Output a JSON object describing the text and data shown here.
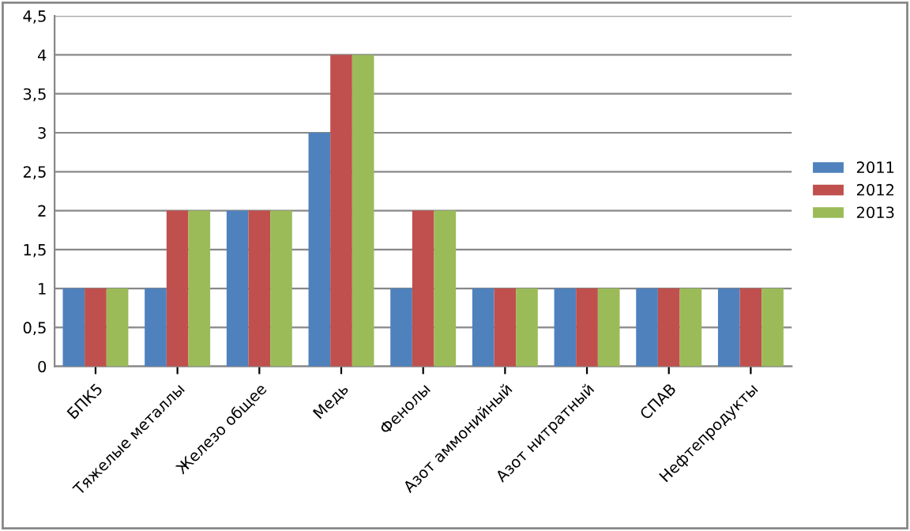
{
  "chart_data": {
    "type": "bar",
    "categories": [
      "БПК5",
      "Тяжелые металлы",
      "Железо общее",
      "Медь",
      "Фенолы",
      "Азот аммонийный",
      "Азот нитратный",
      "СПАВ",
      "Нефтепродукты"
    ],
    "series": [
      {
        "name": "2011",
        "color": "#4f81bd",
        "values": [
          1,
          1,
          2,
          3,
          1,
          1,
          1,
          1,
          1
        ]
      },
      {
        "name": "2012",
        "color": "#c0504d",
        "values": [
          1,
          2,
          2,
          4,
          2,
          1,
          1,
          1,
          1
        ]
      },
      {
        "name": "2013",
        "color": "#9bbb59",
        "values": [
          1,
          2,
          2,
          4,
          2,
          1,
          1,
          1,
          1
        ]
      }
    ],
    "ylim": [
      0,
      4.5
    ],
    "yticks": [
      {
        "value": 0,
        "label": "0"
      },
      {
        "value": 0.5,
        "label": "0,5"
      },
      {
        "value": 1,
        "label": "1"
      },
      {
        "value": 1.5,
        "label": "1,5"
      },
      {
        "value": 2,
        "label": "2"
      },
      {
        "value": 2.5,
        "label": "2,5"
      },
      {
        "value": 3,
        "label": "3"
      },
      {
        "value": 3.5,
        "label": "3,5"
      },
      {
        "value": 4,
        "label": "4"
      },
      {
        "value": 4.5,
        "label": "4,5"
      }
    ],
    "grid": "y",
    "legend": "right"
  }
}
